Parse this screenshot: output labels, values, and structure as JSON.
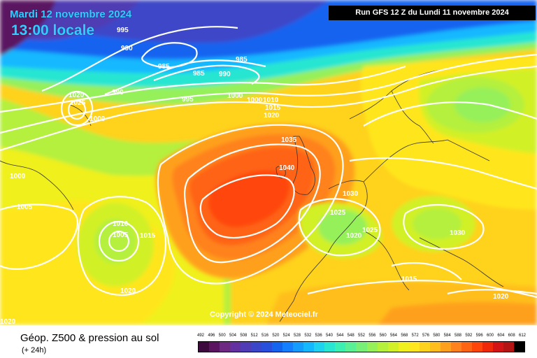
{
  "header": {
    "date_line": "Mardi 12 novembre 2024",
    "time_line": "13:00 locale",
    "run_line": "Run GFS 12 Z du Lundi 11 novembre 2024"
  },
  "map": {
    "copyright": "Copyright © 2024 Meteociel.fr",
    "isobar_labels": [
      "995",
      "990",
      "985",
      "985",
      "990",
      "985",
      "995",
      "990",
      "1020",
      "1025",
      "1000",
      "1000",
      "1000",
      "1010",
      "1015",
      "1020",
      "1035",
      "1040",
      "1030",
      "1025",
      "1025",
      "1020",
      "1030",
      "1000",
      "1005",
      "1010",
      "1005",
      "1015",
      "1020",
      "1015",
      "1020",
      "1020"
    ]
  },
  "footer": {
    "title": "Géop. Z500 & pression au sol",
    "subtitle": "(+ 24h)"
  },
  "legend": {
    "ticks": [
      "492",
      "496",
      "500",
      "504",
      "508",
      "512",
      "516",
      "520",
      "524",
      "528",
      "532",
      "536",
      "540",
      "544",
      "548",
      "552",
      "556",
      "560",
      "564",
      "568",
      "572",
      "576",
      "580",
      "584",
      "588",
      "592",
      "596",
      "600",
      "604",
      "608",
      "612"
    ],
    "colors": [
      "#3c0a3c",
      "#5a1460",
      "#6e2a82",
      "#6432a0",
      "#503cb4",
      "#3c46c8",
      "#2850dc",
      "#1464f0",
      "#1480ff",
      "#149cff",
      "#14b8ff",
      "#1ed2f0",
      "#28e6d2",
      "#3cf0b4",
      "#5af096",
      "#78f078",
      "#96f05a",
      "#b4f03c",
      "#d2f028",
      "#f0f01e",
      "#ffe61e",
      "#ffd21e",
      "#ffbe1e",
      "#ffa01e",
      "#ff821e",
      "#ff6414",
      "#ff460a",
      "#f0280a",
      "#d21414",
      "#b41414",
      "#000000"
    ]
  }
}
